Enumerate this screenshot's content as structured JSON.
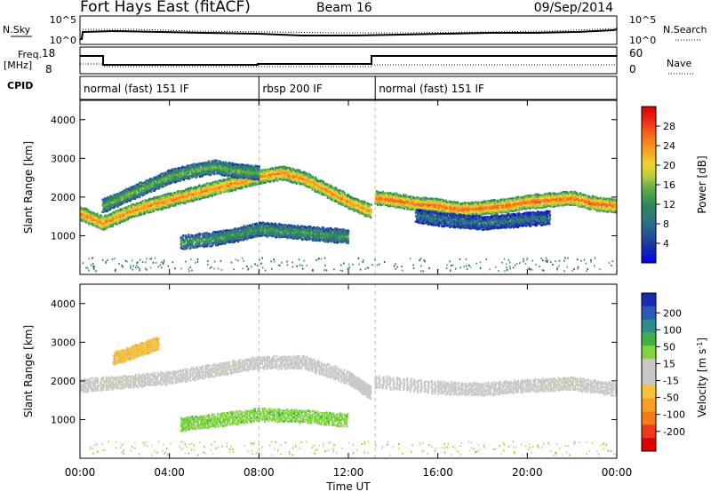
{
  "header": {
    "station": "Fort Hays East (fitACF)",
    "beam": "Beam 16",
    "date": "09/Sep/2014"
  },
  "sky_panel": {
    "left_label": "N.Sky",
    "right_label": "N.Search",
    "left_ticks": [
      "10^5",
      "10^0"
    ],
    "right_ticks": [
      "10^5",
      "10^0"
    ]
  },
  "freq_panel": {
    "left_label_1": "Freq.",
    "left_label_2": "[MHz]",
    "right_label": "Nave",
    "left_ticks": [
      "18",
      "8"
    ],
    "right_ticks": [
      "60",
      "0"
    ]
  },
  "cpid_panel": {
    "label": "CPID",
    "segments": [
      {
        "name": "normal (fast) 151 IF",
        "start_h": 0,
        "end_h": 8
      },
      {
        "name": "rbsp 200 IF",
        "start_h": 8,
        "end_h": 13.2
      },
      {
        "name": "normal (fast) 151 IF",
        "start_h": 13.2,
        "end_h": 24
      }
    ]
  },
  "x_axis": {
    "label": "Time UT",
    "ticks": [
      "00:00",
      "04:00",
      "08:00",
      "12:00",
      "16:00",
      "20:00",
      "00:00"
    ]
  },
  "y_axis": {
    "label": "Slant Range [km]",
    "ticks": [
      "1000",
      "2000",
      "3000",
      "4000"
    ]
  },
  "power_scale": {
    "label": "Power [dB]",
    "ticks": [
      "28",
      "24",
      "20",
      "16",
      "12",
      "8",
      "4"
    ],
    "colors": [
      "#0000ee",
      "#1c3a9c",
      "#2d6e8c",
      "#2e8a5a",
      "#5ca84a",
      "#b8cc3a",
      "#f0d230",
      "#f7a020",
      "#f46a1a",
      "#ee2a1a",
      "#dd0000"
    ]
  },
  "velocity_scale": {
    "label": "Velocity [m s^-1]",
    "ticks": [
      "200",
      "100",
      "50",
      "15",
      "-15",
      "-50",
      "-100",
      "-200"
    ],
    "colors": [
      "#1a2ab0",
      "#2a5ab8",
      "#2a8c8c",
      "#44b044",
      "#7ed63a",
      "#c8c8c4",
      "#c8c8c4",
      "#f5c23a",
      "#f5a020",
      "#f57a1a",
      "#ee3a1a",
      "#dd0000"
    ]
  },
  "chart_data": [
    {
      "type": "heatmap",
      "title": "Power",
      "xlabel": "Time UT",
      "ylabel": "Slant Range [km]",
      "xlim": [
        0,
        24
      ],
      "ylim": [
        0,
        4500
      ],
      "colorbar_label": "Power [dB]",
      "colorbar_range": [
        0,
        32
      ],
      "features": [
        {
          "x": [
            0,
            1,
            2,
            3,
            4,
            5,
            6,
            7,
            8,
            9,
            10,
            11,
            12,
            13
          ],
          "y": [
            1600,
            1350,
            1600,
            1800,
            1950,
            2100,
            2250,
            2400,
            2550,
            2650,
            2500,
            2200,
            1900,
            1650
          ],
          "power_db": 24
        },
        {
          "x": [
            1,
            2,
            3,
            4,
            5,
            6,
            7,
            8
          ],
          "y": [
            1800,
            2050,
            2300,
            2550,
            2700,
            2800,
            2700,
            2650
          ],
          "power_db": 14
        },
        {
          "x": [
            4.5,
            6,
            7,
            8,
            9,
            10,
            11,
            12
          ],
          "y": [
            850,
            950,
            1050,
            1200,
            1150,
            1100,
            1050,
            1000
          ],
          "power_db": 12
        },
        {
          "x": [
            13.2,
            14,
            15,
            16,
            17,
            18,
            19,
            20,
            21,
            22,
            23,
            24
          ],
          "y": [
            2000,
            1950,
            1850,
            1800,
            1700,
            1750,
            1800,
            1900,
            1950,
            2000,
            1850,
            1800
          ],
          "power_db": 26
        },
        {
          "x": [
            15,
            16,
            17,
            18,
            19,
            20,
            21
          ],
          "y": [
            1550,
            1450,
            1400,
            1350,
            1400,
            1450,
            1500
          ],
          "power_db": 8
        }
      ]
    },
    {
      "type": "heatmap",
      "title": "Velocity",
      "xlabel": "Time UT",
      "ylabel": "Slant Range [km]",
      "xlim": [
        0,
        24
      ],
      "ylim": [
        0,
        4500
      ],
      "colorbar_label": "Velocity [m s^-1]",
      "colorbar_range": [
        -200,
        200
      ],
      "features": [
        {
          "x": [
            0,
            2,
            4,
            6,
            8,
            10,
            12,
            13
          ],
          "y": [
            1900,
            2000,
            2100,
            2300,
            2500,
            2500,
            2100,
            1700
          ],
          "velocity": 0
        },
        {
          "x": [
            4.5,
            6,
            8,
            10,
            12
          ],
          "y": [
            900,
            1000,
            1150,
            1100,
            1000
          ],
          "velocity": 50
        },
        {
          "x": [
            13.2,
            16,
            18,
            20,
            22,
            24
          ],
          "y": [
            2000,
            1850,
            1800,
            1900,
            1950,
            1800
          ],
          "velocity": 0
        },
        {
          "x": [
            1.5,
            2.5,
            3.5
          ],
          "y": [
            2600,
            2800,
            3000
          ],
          "velocity": -50
        }
      ]
    }
  ]
}
